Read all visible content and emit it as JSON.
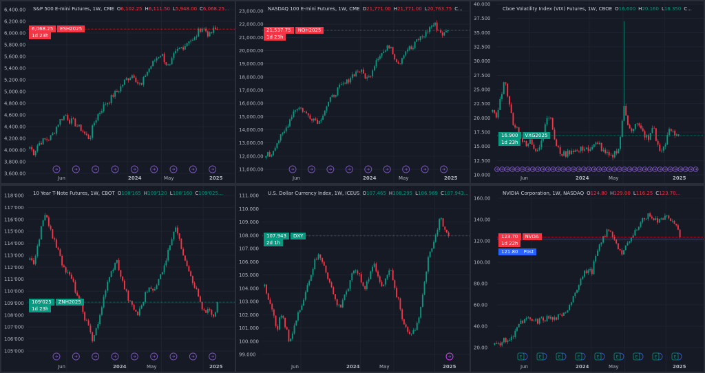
{
  "colors": {
    "up": "#089981",
    "down": "#f23645",
    "grid": "#1f2330",
    "axis_text": "#b2b5be",
    "marker": "#7e57c2",
    "post": "#2962ff"
  },
  "panels": [
    {
      "id": "es",
      "title": "S&P 500 E-mini Futures, 1W, CME",
      "ohlc": {
        "o": "6,102.25",
        "h": "6,111.50",
        "l": "5,948.00",
        "c": "6,068.25..."
      },
      "ohlc_color": "down",
      "price_tag": {
        "price": "6,068.25",
        "symbol": "ESH2025",
        "countdown": "1d 23h",
        "color": "down"
      },
      "last": 6068.25,
      "y_ticks": [
        "6,400.00",
        "6,200.00",
        "6,000.00",
        "5,800.00",
        "5,600.00",
        "5,400.00",
        "5,200.00",
        "5,000.00",
        "4,800.00",
        "4,600.00",
        "4,400.00",
        "4,200.00",
        "4,000.00",
        "3,800.00",
        "3,600.00"
      ],
      "y_range": [
        3600,
        6400
      ],
      "time_labels": [
        "Jun",
        "2024",
        "May",
        "2025"
      ],
      "markers": "sparse",
      "chart_data": {
        "type": "candlestick",
        "closes": [
          4050,
          3950,
          4100,
          4150,
          4180,
          4200,
          4300,
          4450,
          4550,
          4600,
          4500,
          4480,
          4400,
          4350,
          4250,
          4200,
          4450,
          4600,
          4700,
          4800,
          4850,
          4950,
          5000,
          5100,
          5200,
          5250,
          5300,
          5150,
          5100,
          5300,
          5400,
          5500,
          5600,
          5650,
          5500,
          5400,
          5600,
          5700,
          5750,
          5800,
          5900,
          5850,
          6000,
          6100,
          6050,
          5950,
          6050,
          6068.25
        ]
      }
    },
    {
      "id": "nq",
      "title": "NASDAQ 100 E-mini Futures, 1W, CME",
      "ohlc": {
        "o": "21,771.00",
        "h": "21,771.00",
        "l": "20,763.75",
        "c": "C..."
      },
      "ohlc_color": "down",
      "price_tag": {
        "price": "21,537.75",
        "symbol": "NQH2025",
        "countdown": "1d 23h",
        "color": "down"
      },
      "last": 21537.75,
      "y_ticks": [
        "23,000.00",
        "22,000.00",
        "21,000.00",
        "20,000.00",
        "19,000.00",
        "18,000.00",
        "17,000.00",
        "16,000.00",
        "15,000.00",
        "14,000.00",
        "13,000.00",
        "12,000.00",
        "11,000.00"
      ],
      "y_range": [
        11000,
        23000
      ],
      "time_labels": [
        "Jun",
        "2024",
        "May",
        "2025"
      ],
      "markers": "sparse",
      "chart_data": {
        "type": "candlestick",
        "closes": [
          12200,
          12000,
          12800,
          13300,
          13700,
          14500,
          15300,
          15700,
          15600,
          15200,
          15000,
          14800,
          14600,
          15400,
          16000,
          16500,
          17000,
          17300,
          17500,
          18000,
          18300,
          18500,
          18200,
          17800,
          18600,
          19500,
          19800,
          20000,
          20500,
          19500,
          19000,
          19800,
          20200,
          20100,
          20800,
          21000,
          21300,
          21800,
          22000,
          21500,
          21200,
          21537.75
        ]
      }
    },
    {
      "id": "vix",
      "title": "Cboe Volatility Index (VIX) Futures, 1W, CBOE",
      "ohlc": {
        "o": "16.600",
        "h": "20.160",
        "l": "16.350",
        "c": "C..."
      },
      "ohlc_color": "up",
      "price_tag": {
        "price": "16.900",
        "symbol": "VXG2025",
        "countdown": "1d 23h",
        "color": "up"
      },
      "last": 16.9,
      "y_ticks": [
        "40.000",
        "37.500",
        "35.000",
        "32.500",
        "30.000",
        "27.500",
        "25.000",
        "22.500",
        "20.000",
        "17.500",
        "15.000",
        "12.500",
        "10.000"
      ],
      "y_range": [
        10,
        40
      ],
      "time_labels": [
        "Jun",
        "2024",
        "May",
        "2025"
      ],
      "markers": "dense",
      "chart_data": {
        "type": "candlestick",
        "closes": [
          21,
          20,
          24,
          27,
          22,
          19,
          18,
          16,
          15,
          16,
          14.5,
          15,
          17,
          21,
          19,
          15,
          14,
          13.5,
          14,
          14.5,
          14,
          14.5,
          15,
          14,
          15,
          16,
          14,
          13.5,
          13,
          14,
          15,
          22,
          19,
          18,
          19,
          18,
          17,
          16,
          19,
          15,
          14,
          16,
          18,
          17,
          16.9
        ],
        "spike": {
          "index": 31,
          "high": 37
        }
      }
    },
    {
      "id": "zn",
      "title": "10 Year T-Note Futures, 1W, CBOT",
      "ohlc": {
        "o": "108'165",
        "h": "109'120",
        "l": "108'160",
        "c": "109'025..."
      },
      "ohlc_color": "up",
      "price_tag": {
        "price": "109'025",
        "symbol": "ZNH2025",
        "countdown": "1d 23h",
        "color": "up"
      },
      "last": 109.08,
      "y_ticks": [
        "118'000",
        "117'000",
        "116'000",
        "115'000",
        "114'000",
        "113'000",
        "112'000",
        "111'000",
        "110'000",
        "109'000",
        "108'000",
        "107'000",
        "106'000",
        "105'000"
      ],
      "y_range": [
        105,
        118
      ],
      "time_labels": [
        "Jun",
        "2024",
        "May",
        "2025"
      ],
      "markers": "sparse",
      "chart_data": {
        "type": "candlestick",
        "closes": [
          113,
          112,
          114,
          116,
          116.5,
          115,
          114,
          113.5,
          112,
          111.5,
          111,
          110,
          109,
          108,
          107,
          106,
          107,
          108,
          110,
          111,
          112,
          112.5,
          111,
          110,
          109,
          108.5,
          108,
          109,
          110,
          110.5,
          110,
          111,
          112,
          113,
          114.5,
          115.5,
          114,
          113,
          112,
          111,
          110,
          109,
          108,
          108.5,
          107.5,
          109.08
        ]
      }
    },
    {
      "id": "dxy",
      "title": "U.S. Dollar Currency Index, 1W, ICEUS",
      "ohlc": {
        "o": "107.465",
        "h": "108.295",
        "l": "106.969",
        "c": "107.943..."
      },
      "ohlc_color": "up",
      "price_tag": {
        "price": "107.943",
        "symbol": "DXY",
        "countdown": "2d 1h",
        "color": "up"
      },
      "last": 107.943,
      "y_ticks": [
        "111.000",
        "110.000",
        "109.000",
        "108.000",
        "107.000",
        "106.000",
        "105.000",
        "104.000",
        "103.000",
        "102.000",
        "101.000",
        "100.000",
        "99.000"
      ],
      "y_range": [
        99,
        111
      ],
      "time_labels": [
        "Jun",
        "2024",
        "May",
        "2025"
      ],
      "markers": "single",
      "chart_data": {
        "type": "candlestick",
        "closes": [
          104.5,
          103,
          102,
          101,
          102,
          101,
          100,
          101,
          102,
          103,
          104,
          105,
          106,
          106.5,
          106,
          105,
          104,
          103,
          102.5,
          103.5,
          104,
          105,
          105.5,
          104.5,
          104,
          105,
          106,
          105,
          104,
          105,
          105.5,
          104,
          103,
          101.5,
          101,
          100.5,
          101,
          102,
          104,
          106,
          107,
          108,
          109.5,
          108.5,
          107.943
        ]
      }
    },
    {
      "id": "nvda",
      "title": "NVIDIA Corporation, 1W, NASDAQ",
      "ohlc": {
        "o": "124.80",
        "h": "129.00",
        "l": "116.25",
        "c": "123.70..."
      },
      "ohlc_color": "down",
      "price_tag": {
        "price": "123.70",
        "symbol": "NVDA",
        "countdown": "1d 22h",
        "color": "down"
      },
      "post_tag": {
        "price": "121.80",
        "label": "Post"
      },
      "last": 123.7,
      "post": 121.8,
      "y_ticks": [
        "160.00",
        "140.00",
        "120.00",
        "100.00",
        "80.00",
        "60.00",
        "40.00",
        "20.00"
      ],
      "y_range": [
        20,
        160
      ],
      "time_labels": [
        "Jun",
        "2024",
        "May",
        "2025"
      ],
      "markers": "earnings",
      "chart_data": {
        "type": "candlestick",
        "closes": [
          22,
          24,
          26,
          27,
          28,
          38,
          42,
          45,
          46,
          45,
          44,
          46,
          47,
          48,
          46,
          49,
          48,
          55,
          62,
          72,
          80,
          88,
          93,
          90,
          105,
          115,
          125,
          130,
          125,
          118,
          108,
          112,
          120,
          125,
          135,
          140,
          142,
          145,
          140,
          138,
          142,
          146,
          138,
          134,
          123.7
        ]
      }
    }
  ]
}
